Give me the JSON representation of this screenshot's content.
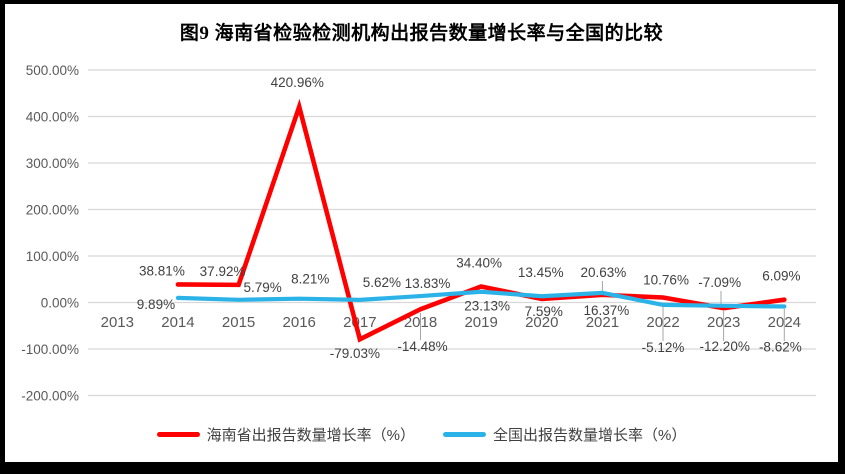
{
  "figure": {
    "title": "图9 海南省检验检测机构出报告数量增长率与全国的比较"
  },
  "chart_data": {
    "type": "line",
    "title": "图9 海南省检验检测机构出报告数量增长率与全国的比较",
    "categories": [
      "2013",
      "2014",
      "2015",
      "2016",
      "2017",
      "2018",
      "2019",
      "2020",
      "2021",
      "2022",
      "2023",
      "2024"
    ],
    "series": [
      {
        "name": "海南省出报告数量增长率（%）",
        "color": "#FF0000",
        "values": [
          null,
          38.81,
          37.92,
          420.96,
          -79.03,
          -14.48,
          34.4,
          7.59,
          16.37,
          10.76,
          -12.2,
          6.09
        ]
      },
      {
        "name": "全国出报告数量增长率（%）",
        "color": "#2BB3E8",
        "values": [
          null,
          9.89,
          5.79,
          8.21,
          5.62,
          13.83,
          23.13,
          13.45,
          20.63,
          -5.12,
          -7.09,
          -8.62
        ]
      }
    ],
    "ylim": [
      -200,
      500
    ],
    "y_ticks": [
      "500.00%",
      "400.00%",
      "300.00%",
      "200.00%",
      "100.00%",
      "0.00%",
      "-100.00%",
      "-200.00%"
    ],
    "grid": true,
    "legend_position": "bottom",
    "data_labels": true,
    "colors": {
      "axis_label": "#595959",
      "data_label": "#404040",
      "gridline": "#D8D8D8",
      "leader_line": "#A6A6A6",
      "frame": "#000000"
    }
  }
}
